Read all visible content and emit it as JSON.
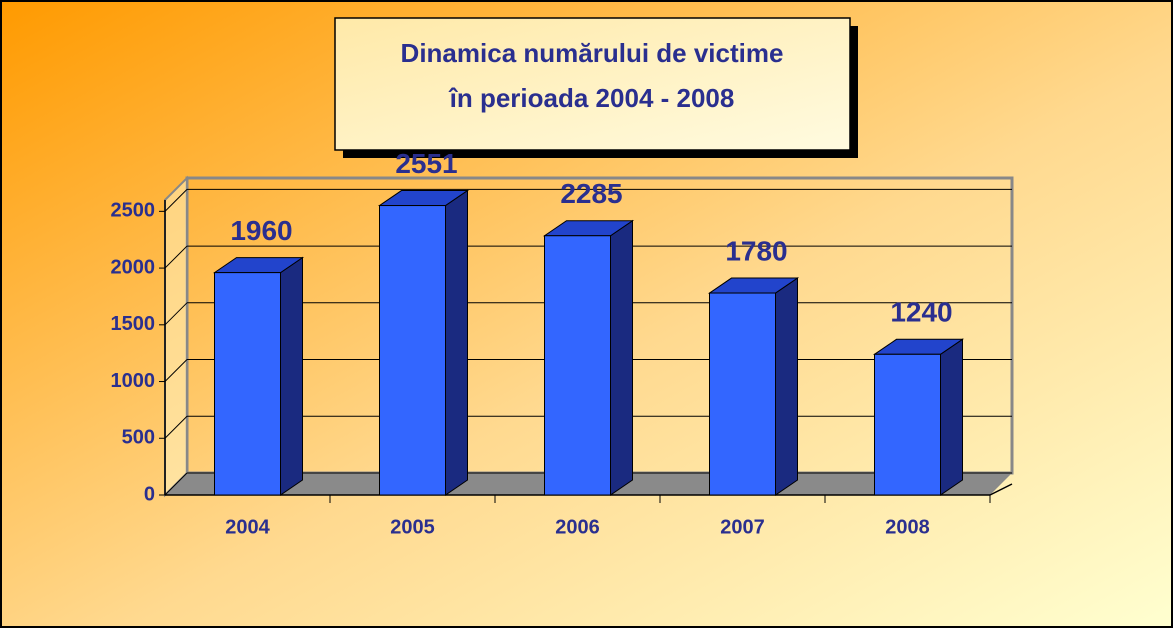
{
  "chart_data": {
    "type": "bar3d",
    "title": [
      "Dinamica numărului de victime",
      "în perioada 2004 - 2008"
    ],
    "categories": [
      "2004",
      "2005",
      "2006",
      "2007",
      "2008"
    ],
    "values": [
      1960,
      2551,
      2285,
      1780,
      1240
    ],
    "color": "#3366ff",
    "ylim": [
      0,
      2600
    ],
    "yticks": [
      0,
      500,
      1000,
      1500,
      2000,
      2500
    ],
    "grid": true
  }
}
